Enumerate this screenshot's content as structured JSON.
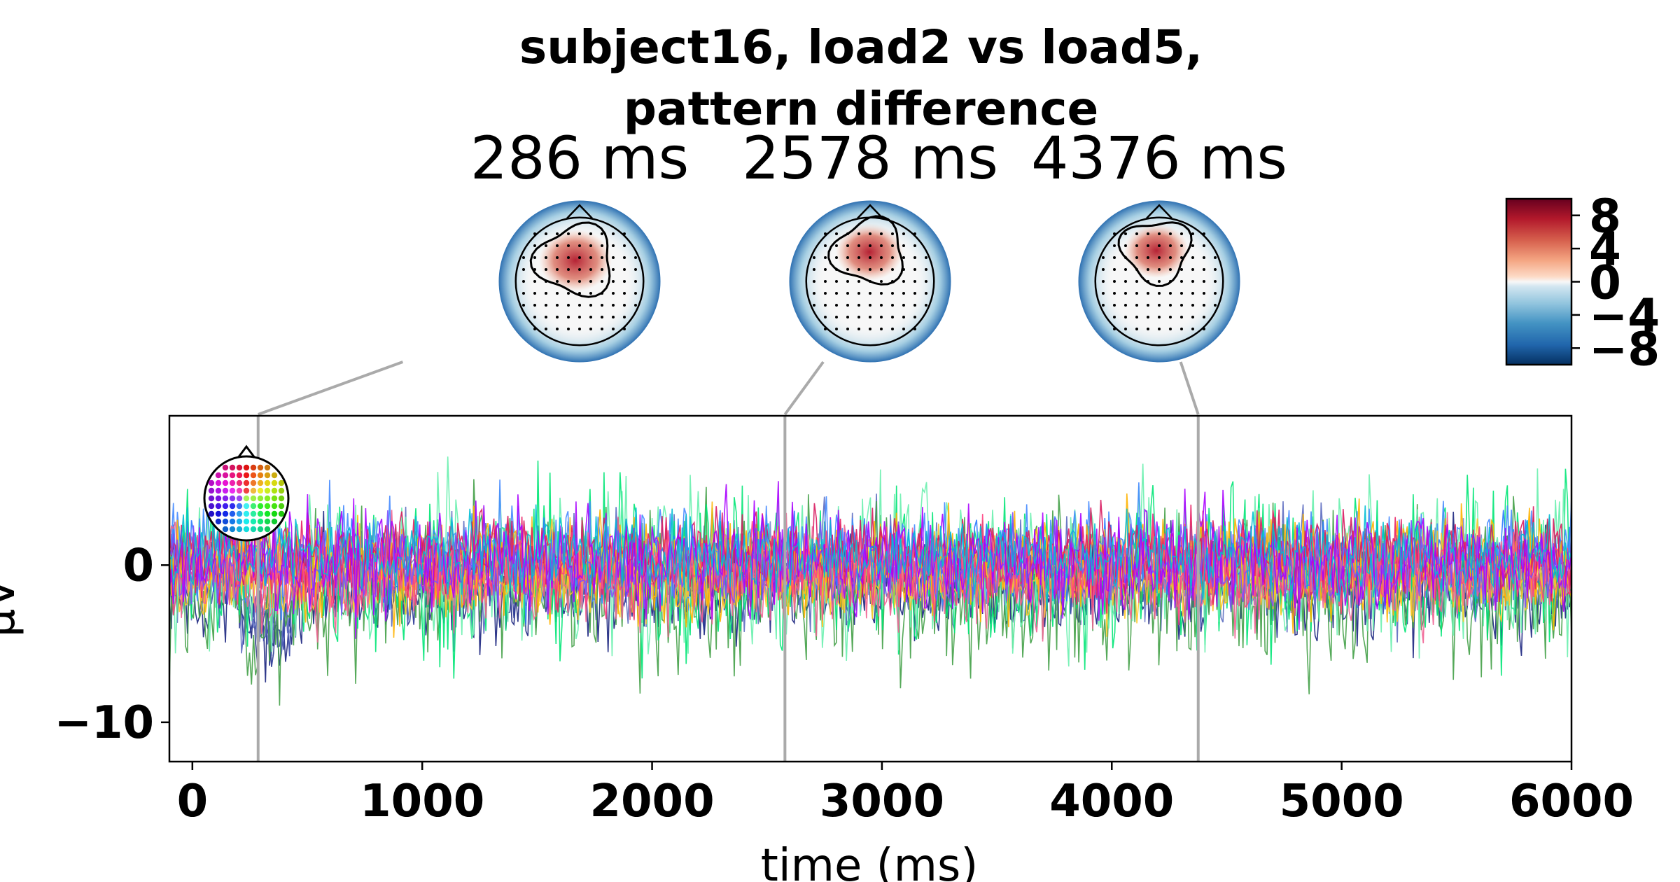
{
  "chart_data": {
    "type": "line",
    "title_line1": "subject16, load2 vs load5,",
    "title_line2": "pattern difference",
    "xlabel": "time (ms)",
    "ylabel": "µV",
    "xlim": [
      -100,
      6000
    ],
    "ylim": [
      -12.5,
      9.5
    ],
    "x_ticks": [
      "0",
      "1000",
      "2000",
      "3000",
      "4000",
      "5000",
      "6000"
    ],
    "x_tick_values": [
      0,
      1000,
      2000,
      3000,
      4000,
      5000,
      6000
    ],
    "y_ticks": [
      "0",
      "−10"
    ],
    "y_tick_values": [
      0,
      -10
    ],
    "topomap_times": [
      "286 ms",
      "2578 ms",
      "4376 ms"
    ],
    "topomap_time_values": [
      286,
      2578,
      4376
    ],
    "colorbar": {
      "ticks": [
        "8",
        "4",
        "0",
        "−4",
        "−8"
      ],
      "tick_values": [
        8,
        4,
        0,
        -4,
        -8
      ],
      "range": [
        -10,
        10
      ],
      "cmap": "RdBu_r"
    },
    "grid": false,
    "channel_colors": [
      "#1a237e",
      "#283593",
      "#3949ab",
      "#5c6bc0",
      "#7986cb",
      "#43a047",
      "#00e676",
      "#69f0ae",
      "#2979ff",
      "#448aff",
      "#ffca28",
      "#fbc02d",
      "#ffb300",
      "#e91e63",
      "#d81b60",
      "#f06292",
      "#ff4081",
      "#7c4dff",
      "#aa00ff",
      "#00bcd4"
    ],
    "annotations": {
      "time_marker_color": "#aaaaaa"
    }
  }
}
